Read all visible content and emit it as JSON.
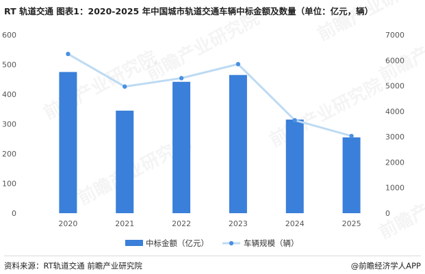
{
  "title": "RT 轨道交通  图表1：2020-2025 年中国城市轨道交通车辆中标金额及数量（单位：亿元，辆）",
  "footer": {
    "source": "资料来源：RT轨道交通 前瞻产业研究院",
    "brand": "@前瞻经济学人APP"
  },
  "watermark": "前瞻产业研究院",
  "colors": {
    "bar": "#3a7fd9",
    "line": "#bcdaf3",
    "marker": "#4a90e2"
  },
  "chart_data": {
    "type": "bar",
    "categories": [
      "2020",
      "2021",
      "2022",
      "2023",
      "2024",
      "2025"
    ],
    "series": [
      {
        "name": "中标金额（亿元）",
        "type": "bar",
        "axis": "left",
        "values": [
          475,
          345,
          442,
          465,
          315,
          255
        ]
      },
      {
        "name": "车辆规模（辆）",
        "type": "line",
        "axis": "right",
        "values": [
          6250,
          4970,
          5300,
          5850,
          3650,
          3030
        ]
      }
    ],
    "y_left": {
      "min": 0,
      "max": 600,
      "ticks": [
        0,
        100,
        200,
        300,
        400,
        500,
        600
      ]
    },
    "y_right": {
      "min": 0,
      "max": 7000,
      "ticks": [
        0,
        1000,
        2000,
        3000,
        4000,
        5000,
        6000,
        7000
      ]
    },
    "grid": false,
    "legend": "bottom"
  }
}
